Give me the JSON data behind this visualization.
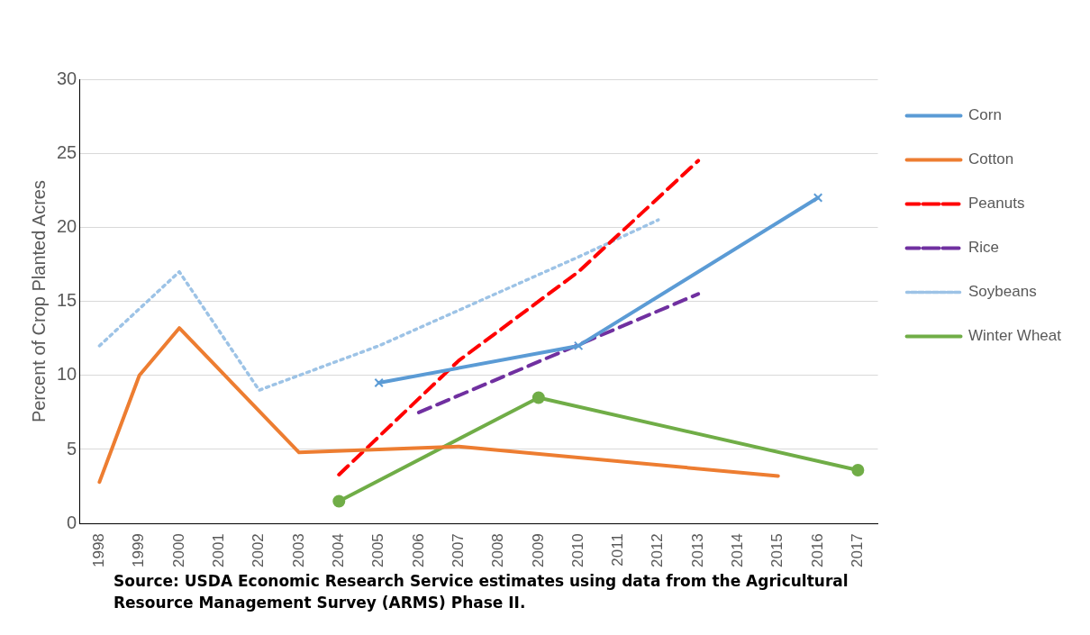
{
  "chart_data": {
    "type": "line",
    "ylabel": "Percent of Crop Planted Acres",
    "xlim": [
      1997.5,
      2017.5
    ],
    "xticks": [
      1998,
      1999,
      2000,
      2001,
      2002,
      2003,
      2004,
      2005,
      2006,
      2007,
      2008,
      2009,
      2010,
      2011,
      2012,
      2013,
      2014,
      2015,
      2016,
      2017
    ],
    "ylim": [
      0,
      30
    ],
    "yticks": [
      0,
      5,
      10,
      15,
      20,
      25,
      30
    ],
    "grid": "y",
    "legend": "right",
    "annotations": [
      "Source: USDA Economic Research Service estimates using data from the Agricultural Resource Management Survey (ARMS) Phase II."
    ],
    "series": [
      {
        "name": "Corn",
        "color": "#5b9bd5",
        "x": [
          2005,
          2010,
          2016
        ],
        "values": [
          9.5,
          12,
          22
        ],
        "marker": "cross",
        "line_style": "solid"
      },
      {
        "name": "Cotton",
        "color": "#ed7d31",
        "x": [
          1998,
          1999,
          2000,
          2003,
          2007,
          2015
        ],
        "values": [
          2.8,
          10,
          13.2,
          4.8,
          5.2,
          3.2
        ],
        "marker": "none",
        "line_style": "solid"
      },
      {
        "name": "Peanuts",
        "color": "#ff0000",
        "x": [
          2004,
          2007,
          2010,
          2013
        ],
        "values": [
          3.3,
          11,
          17,
          24.5
        ],
        "marker": "none",
        "line_style": "dashed"
      },
      {
        "name": "Rice",
        "color": "#7030a0",
        "x": [
          2006,
          2013
        ],
        "values": [
          7.5,
          15.5
        ],
        "marker": "none",
        "line_style": "dashed"
      },
      {
        "name": "Soybeans",
        "color": "#9dc3e6",
        "x": [
          1998,
          2000,
          2002,
          2003,
          2005,
          2010,
          2012
        ],
        "values": [
          12,
          17,
          9,
          10,
          12,
          18,
          20.5
        ],
        "marker": "none",
        "line_style": "dotted"
      },
      {
        "name": "Winter Wheat",
        "color": "#70ad47",
        "x": [
          2004,
          2009,
          2017
        ],
        "values": [
          1.5,
          8.5,
          3.6
        ],
        "marker": "circle",
        "line_style": "solid"
      }
    ]
  }
}
